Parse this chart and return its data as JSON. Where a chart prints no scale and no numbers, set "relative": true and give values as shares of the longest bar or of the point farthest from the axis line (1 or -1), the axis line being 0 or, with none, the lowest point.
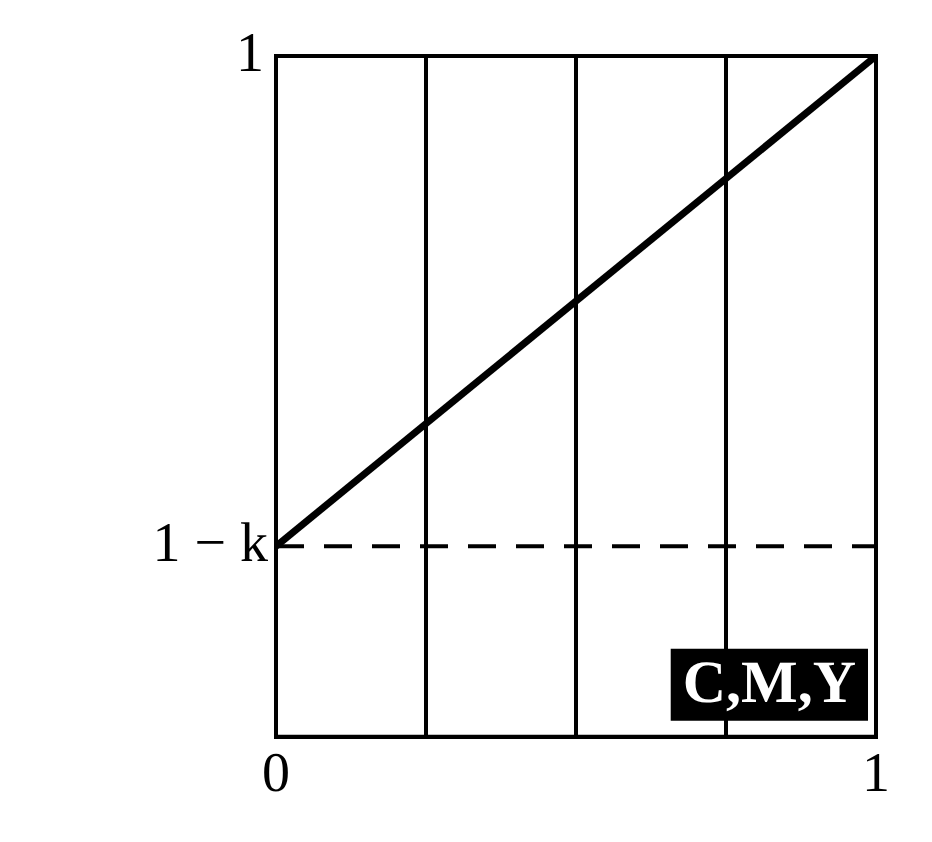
{
  "chart_data": {
    "type": "line",
    "relative": true,
    "x": [
      0,
      1
    ],
    "series": [
      {
        "color": "#000000",
        "values": [
          0.28,
          1
        ]
      }
    ],
    "xlim": [
      0,
      1
    ],
    "xticks": [
      0,
      {
        "value": 0.25,
        "label": null
      },
      {
        "value": 0.5,
        "label": null
      },
      {
        "value": 0.75,
        "label": null
      },
      1
    ],
    "ref_lines": [
      {
        "axis": "y",
        "value": 0.28,
        "color": "#000000",
        "line_style": "dashed",
        "label": "1 − k"
      }
    ],
    "annotations": [
      "1",
      "C,M,Y"
    ],
    "grid": "x",
    "legend": false,
    "marker": "none",
    "line_style": "solid"
  }
}
